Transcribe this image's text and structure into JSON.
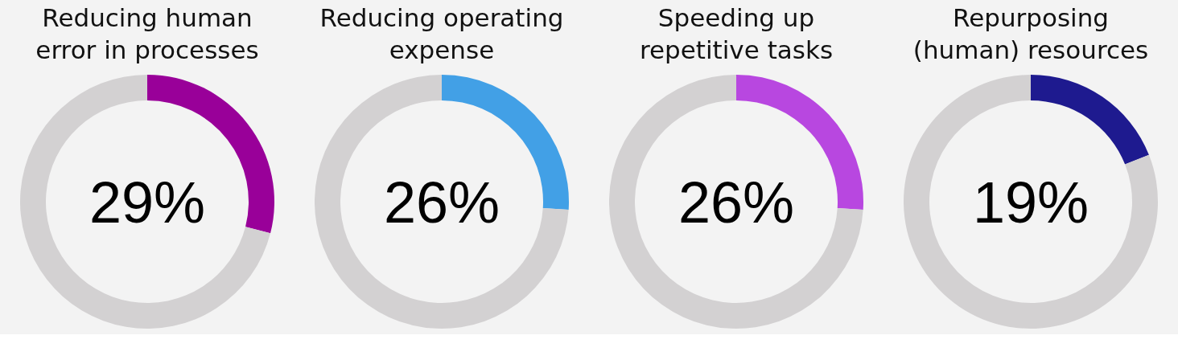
{
  "chart_data": [
    {
      "type": "donut",
      "title": "Reducing human\nerror in processes",
      "categories": [
        null,
        null
      ],
      "values": [
        29,
        71
      ],
      "colors": [
        "#990099",
        "#d3d1d2"
      ],
      "annotations": [
        "29%"
      ]
    },
    {
      "type": "donut",
      "title": "Reducing operating\nexpense",
      "categories": [
        null,
        null
      ],
      "values": [
        26,
        74
      ],
      "colors": [
        "#42a0e6",
        "#d3d1d2"
      ],
      "annotations": [
        "26%"
      ]
    },
    {
      "type": "donut",
      "title": "Speeding up\nrepetitive tasks",
      "categories": [
        null,
        null
      ],
      "values": [
        26,
        74
      ],
      "colors": [
        "#b847e0",
        "#d3d1d2"
      ],
      "annotations": [
        "26%"
      ]
    },
    {
      "type": "donut",
      "title": "Repurposing\n(human) resources",
      "categories": [
        null,
        null
      ],
      "values": [
        19,
        81
      ],
      "colors": [
        "#1e1a8f",
        "#d3d1d2"
      ],
      "annotations": [
        "19%"
      ]
    }
  ]
}
